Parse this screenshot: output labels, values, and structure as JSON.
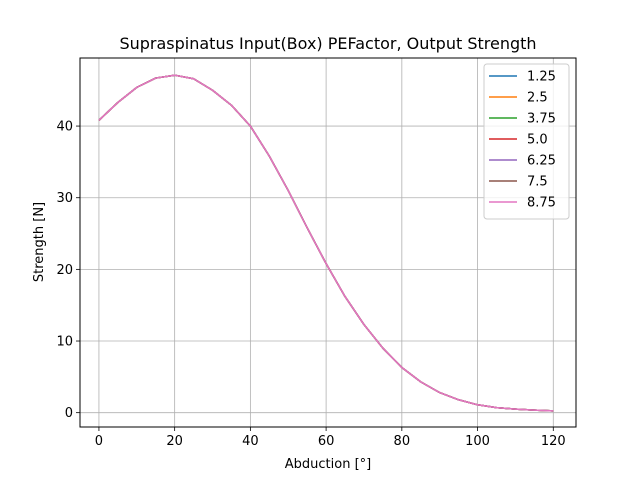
{
  "chart_data": {
    "type": "line",
    "title": "Supraspinatus Input(Box) PEFactor, Output Strength",
    "xlabel": "Abduction [°]",
    "ylabel": "Strength [N]",
    "xlim": [
      -5,
      126
    ],
    "ylim": [
      -2,
      49.5
    ],
    "xticks": [
      0,
      20,
      40,
      60,
      80,
      100,
      120
    ],
    "yticks": [
      0,
      10,
      20,
      30,
      40
    ],
    "grid": true,
    "legend_position": "top-right",
    "x": [
      0,
      5,
      10,
      15,
      20,
      25,
      30,
      35,
      40,
      45,
      50,
      55,
      60,
      65,
      70,
      75,
      80,
      85,
      90,
      95,
      100,
      105,
      110,
      115,
      120
    ],
    "series": [
      {
        "name": "1.25",
        "color": "#1f77b4",
        "values": [
          40.8,
          43.3,
          45.4,
          46.7,
          47.1,
          46.6,
          45.0,
          42.9,
          40.0,
          35.8,
          31.0,
          25.8,
          20.8,
          16.2,
          12.3,
          9.0,
          6.3,
          4.3,
          2.8,
          1.8,
          1.1,
          0.7,
          0.5,
          0.35,
          0.25
        ]
      },
      {
        "name": "2.5",
        "color": "#ff7f0e",
        "values": [
          40.8,
          43.3,
          45.4,
          46.7,
          47.1,
          46.6,
          45.0,
          42.9,
          40.0,
          35.8,
          31.0,
          25.8,
          20.8,
          16.2,
          12.3,
          9.0,
          6.3,
          4.3,
          2.8,
          1.8,
          1.1,
          0.7,
          0.5,
          0.35,
          0.25
        ]
      },
      {
        "name": "3.75",
        "color": "#2ca02c",
        "values": [
          40.8,
          43.3,
          45.4,
          46.7,
          47.1,
          46.6,
          45.0,
          42.9,
          40.0,
          35.8,
          31.0,
          25.8,
          20.8,
          16.2,
          12.3,
          9.0,
          6.3,
          4.3,
          2.8,
          1.8,
          1.1,
          0.7,
          0.5,
          0.35,
          0.25
        ]
      },
      {
        "name": "5.0",
        "color": "#d62728",
        "values": [
          40.8,
          43.3,
          45.4,
          46.7,
          47.1,
          46.6,
          45.0,
          42.9,
          40.0,
          35.8,
          31.0,
          25.8,
          20.8,
          16.2,
          12.3,
          9.0,
          6.3,
          4.3,
          2.8,
          1.8,
          1.1,
          0.7,
          0.5,
          0.35,
          0.25
        ]
      },
      {
        "name": "6.25",
        "color": "#9467bd",
        "values": [
          40.8,
          43.3,
          45.4,
          46.7,
          47.1,
          46.6,
          45.0,
          42.9,
          40.0,
          35.8,
          31.0,
          25.8,
          20.8,
          16.2,
          12.3,
          9.0,
          6.3,
          4.3,
          2.8,
          1.8,
          1.1,
          0.7,
          0.5,
          0.35,
          0.25
        ]
      },
      {
        "name": "7.5",
        "color": "#8c564b",
        "values": [
          40.8,
          43.3,
          45.4,
          46.7,
          47.1,
          46.6,
          45.0,
          42.9,
          40.0,
          35.8,
          31.0,
          25.8,
          20.8,
          16.2,
          12.3,
          9.0,
          6.3,
          4.3,
          2.8,
          1.8,
          1.1,
          0.7,
          0.5,
          0.35,
          0.25
        ]
      },
      {
        "name": "8.75",
        "color": "#e377c2",
        "values": [
          40.8,
          43.3,
          45.4,
          46.7,
          47.1,
          46.6,
          45.0,
          42.9,
          40.0,
          35.8,
          31.0,
          25.8,
          20.8,
          16.2,
          12.3,
          9.0,
          6.3,
          4.3,
          2.8,
          1.8,
          1.1,
          0.7,
          0.5,
          0.35,
          0.25
        ]
      }
    ]
  }
}
